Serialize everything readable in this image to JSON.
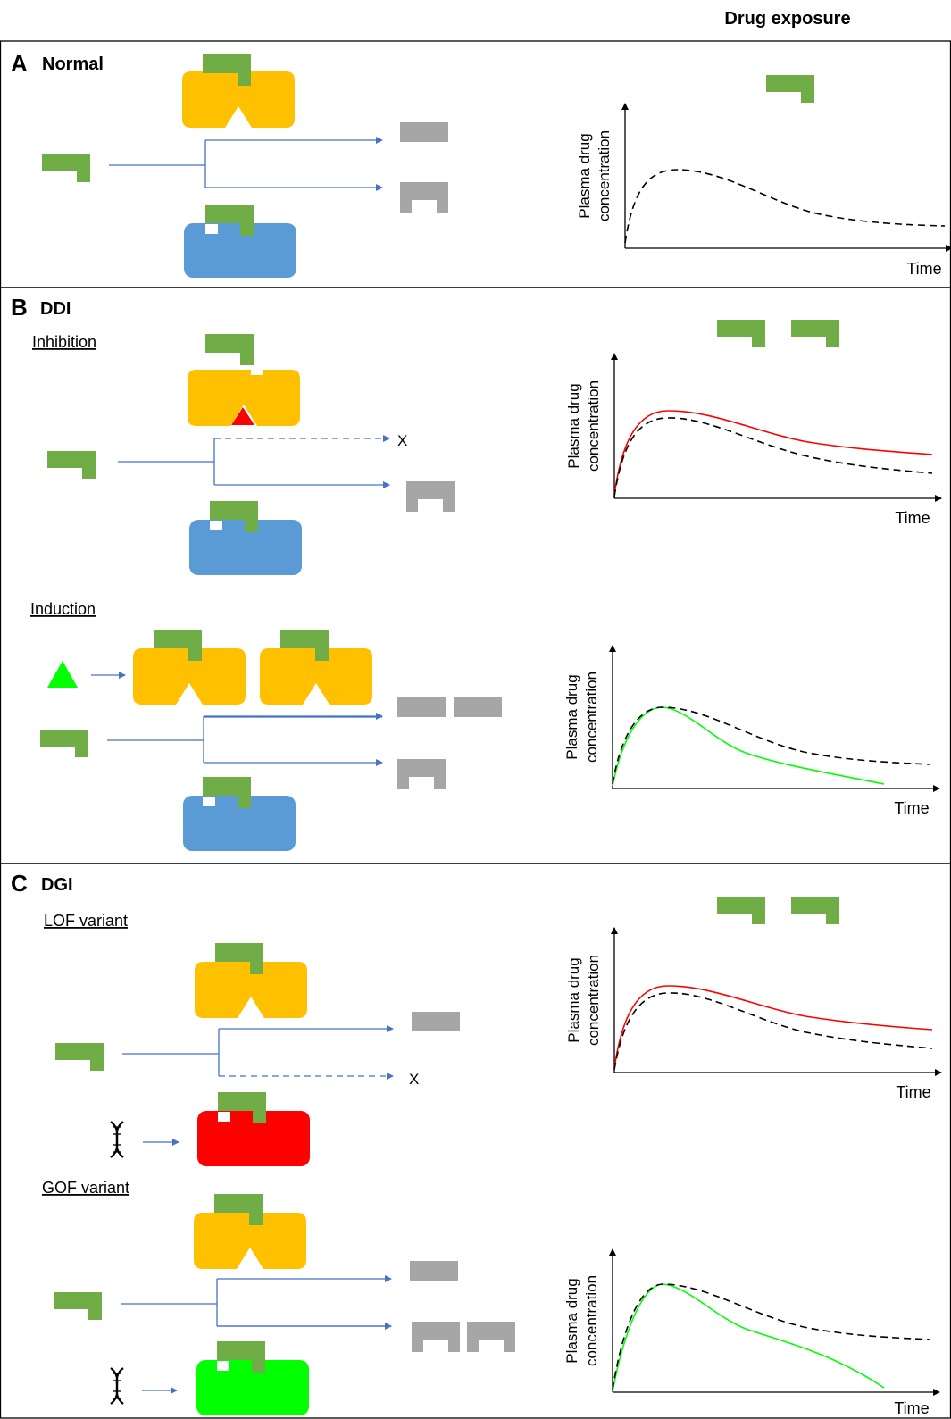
{
  "header": {
    "title": "Drug exposure"
  },
  "panels": {
    "a": {
      "letter": "A",
      "title": "Normal"
    },
    "b": {
      "letter": "B",
      "title": "DDI",
      "inhibition": "Inhibition",
      "induction": "Induction",
      "blocked_marker": "X"
    },
    "c": {
      "letter": "C",
      "title": "DGI",
      "lof": "LOF variant",
      "gof": "GOF variant",
      "blocked_marker": "X"
    }
  },
  "plot_labels": {
    "ylabel_line1": "Plasma drug",
    "ylabel_line2": "concentration",
    "xlabel": "Time"
  },
  "colors": {
    "drug": "#70ad47",
    "enzyme_yellow": "#ffc000",
    "enzyme_blue": "#5b9bd5",
    "metabolite": "#a6a6a6",
    "arrow": "#4472c4",
    "inhibitor": "#ff0000",
    "inducer": "#00ff00",
    "lof_enzyme": "#ff0000",
    "gof_enzyme": "#00ff00",
    "baseline_curve": "#000000"
  },
  "icons": [
    "drug-molecule-icon",
    "enzyme-icon",
    "metabolite-icon",
    "inhibitor-triangle-icon",
    "inducer-triangle-icon",
    "dna-helix-icon",
    "arrow-icon"
  ],
  "chart_data": [
    {
      "type": "line",
      "panel": "A Normal",
      "xlabel": "Time",
      "ylabel": "Plasma drug concentration",
      "series": [
        {
          "style": "dashed",
          "color": "#000000"
        }
      ]
    },
    {
      "type": "line",
      "panel": "B DDI - Inhibition",
      "xlabel": "Time",
      "ylabel": "Plasma drug concentration",
      "series": [
        {
          "style": "dashed",
          "color": "#000000"
        },
        {
          "style": "solid",
          "color": "#ff0000"
        }
      ]
    },
    {
      "type": "line",
      "panel": "B DDI - Induction",
      "xlabel": "Time",
      "ylabel": "Plasma drug concentration",
      "series": [
        {
          "style": "dashed",
          "color": "#000000"
        },
        {
          "style": "solid",
          "color": "#00ff00"
        }
      ]
    },
    {
      "type": "line",
      "panel": "C DGI - LOF variant",
      "xlabel": "Time",
      "ylabel": "Plasma drug concentration",
      "series": [
        {
          "style": "dashed",
          "color": "#000000"
        },
        {
          "style": "solid",
          "color": "#ff0000"
        }
      ]
    },
    {
      "type": "line",
      "panel": "C DGI - GOF variant",
      "xlabel": "Time",
      "ylabel": "Plasma drug concentration",
      "series": [
        {
          "style": "dashed",
          "color": "#000000"
        },
        {
          "style": "solid",
          "color": "#00ff00"
        }
      ]
    }
  ]
}
